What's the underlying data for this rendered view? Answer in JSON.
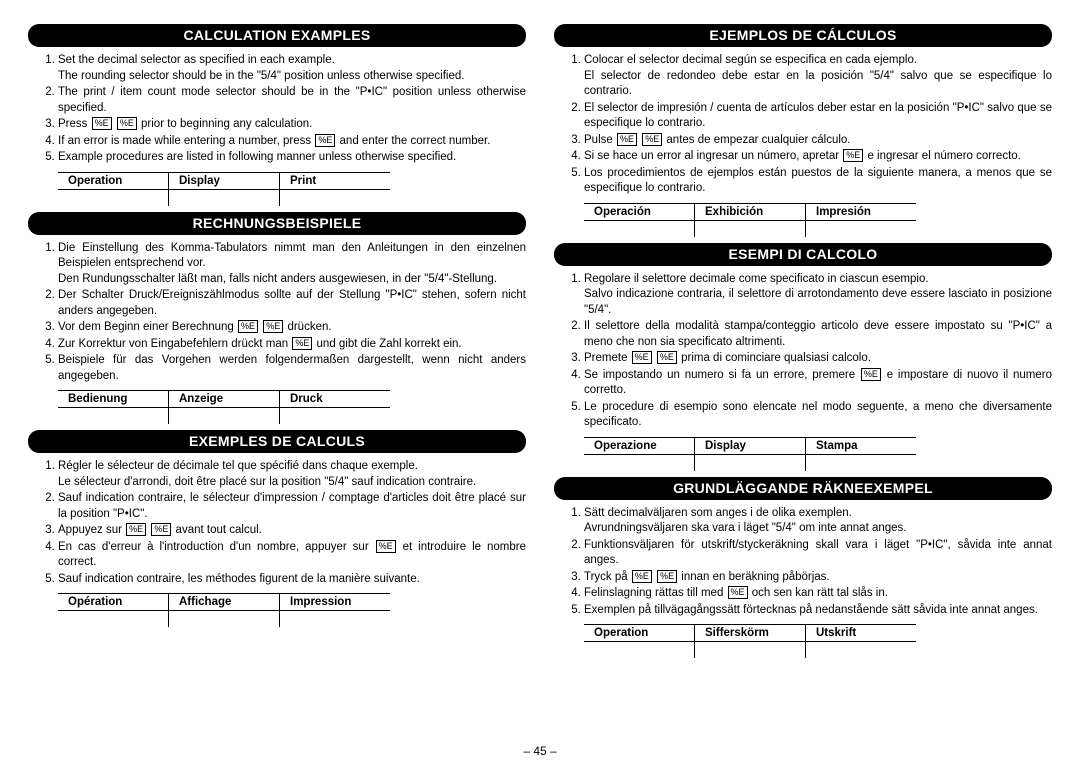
{
  "page_number": "– 45 –",
  "key_glyph": "%E",
  "sections": {
    "en": {
      "title": "CALCULATION EXAMPLES",
      "items": [
        [
          "Set the decimal selector as specified in each example.",
          "The rounding selector should be in the \"5/4\" position unless otherwise specified."
        ],
        [
          "The print / item count mode selector should be in the \"P•IC\" position unless otherwise specified."
        ],
        [
          "Press {K} {K} prior to beginning any calculation."
        ],
        [
          "If an error is made while entering a number, press {K} and enter the correct number."
        ],
        [
          "Example procedures are listed in following manner unless otherwise specified."
        ]
      ],
      "table": [
        "Operation",
        "Display",
        "Print"
      ]
    },
    "de": {
      "title": "RECHNUNGSBEISPIELE",
      "items": [
        [
          "Die Einstellung des Komma-Tabulators nimmt man den Anleitungen in den einzelnen Beispielen entsprechend vor.",
          "Den Rundungsschalter läßt man, falls nicht anders ausgewiesen, in der \"5/4\"-Stellung."
        ],
        [
          "Der Schalter Druck/Ereigniszählmodus sollte auf der Stellung \"P•IC\" stehen, sofern nicht anders angegeben."
        ],
        [
          "Vor dem Beginn einer Berechnung {K} {K} drücken."
        ],
        [
          "Zur Korrektur von Eingabefehlern drückt man {K} und gibt die Zahl korrekt ein."
        ],
        [
          "Beispiele für das Vorgehen werden folgendermaßen dargestellt, wenn nicht anders angegeben."
        ]
      ],
      "table": [
        "Bedienung",
        "Anzeige",
        "Druck"
      ]
    },
    "fr": {
      "title": "EXEMPLES DE CALCULS",
      "items": [
        [
          "Régler le sélecteur de décimale tel que spécifié dans chaque exemple.",
          "Le sélecteur d'arrondi, doit être placé sur la position \"5/4\" sauf indication contraire."
        ],
        [
          "Sauf indication contraire, le sélecteur d'impression / comptage d'articles doit être placé sur la position \"P•IC\"."
        ],
        [
          "Appuyez sur {K} {K} avant tout calcul."
        ],
        [
          "En cas d'erreur à l'introduction d'un nombre, appuyer sur {K} et introduire le nombre correct."
        ],
        [
          "Sauf indication contraire, les méthodes figurent de la manière suivante."
        ]
      ],
      "table": [
        "Opération",
        "Affichage",
        "Impression"
      ]
    },
    "es": {
      "title": "EJEMPLOS DE CÁLCULOS",
      "items": [
        [
          "Colocar el selector decimal según se especifica en cada ejemplo.",
          "El selector de redondeo debe estar en la posición \"5/4\" salvo que se especifique lo contrario."
        ],
        [
          "El selector de impresión / cuenta de artículos deber estar en la posición \"P•IC\" salvo que se especifique lo contrario."
        ],
        [
          "Pulse {K} {K} antes de empezar cualquier cálculo."
        ],
        [
          "Si se hace un error al ingresar un número, apretar {K} e ingresar el número correcto."
        ],
        [
          "Los procedimientos de ejemplos están puestos de la siguiente manera, a menos que se especifique lo contrario."
        ]
      ],
      "table": [
        "Operación",
        "Exhibición",
        "Impresión"
      ]
    },
    "it": {
      "title": "ESEMPI DI CALCOLO",
      "items": [
        [
          "Regolare il selettore decimale come specificato in ciascun esempio.",
          "Salvo indicazione contraria, il selettore di arrotondamento deve essere lasciato in posizione \"5/4\"."
        ],
        [
          "Il selettore della modalità stampa/conteggio articolo deve essere impostato su \"P•IC\" a meno che non sia specificato altrimenti."
        ],
        [
          "Premete {K} {K} prima di cominciare qualsiasi calcolo."
        ],
        [
          "Se impostando un numero si fa un errore, premere {K} e impostare di nuovo il numero corretto."
        ],
        [
          "Le procedure di esempio sono elencate nel modo seguente, a meno che diversamente specificato."
        ]
      ],
      "table": [
        "Operazione",
        "Display",
        "Stampa"
      ]
    },
    "sv": {
      "title": "GRUNDLÄGGANDE RÄKNEEXEMPEL",
      "items": [
        [
          "Sätt decimalväljaren som anges i de olika exemplen.",
          "Avrundningsväljaren ska vara i läget \"5/4\" om inte annat anges."
        ],
        [
          "Funktionsväljaren för utskrift/styckeräkning skall vara i läget \"P•IC\", såvida inte annat anges."
        ],
        [
          "Tryck på {K} {K} innan en beräkning påbörjas."
        ],
        [
          "Felinslagning rättas till med {K} och sen kan rätt tal slås in."
        ],
        [
          "Exemplen på tillvägagångssätt förtecknas på nedanstående sätt såvida inte annat anges."
        ]
      ],
      "table": [
        "Operation",
        "Sifferskörm",
        "Utskrift"
      ]
    }
  },
  "layout": {
    "left": [
      "en",
      "de",
      "fr"
    ],
    "right": [
      "es",
      "it",
      "sv"
    ]
  }
}
